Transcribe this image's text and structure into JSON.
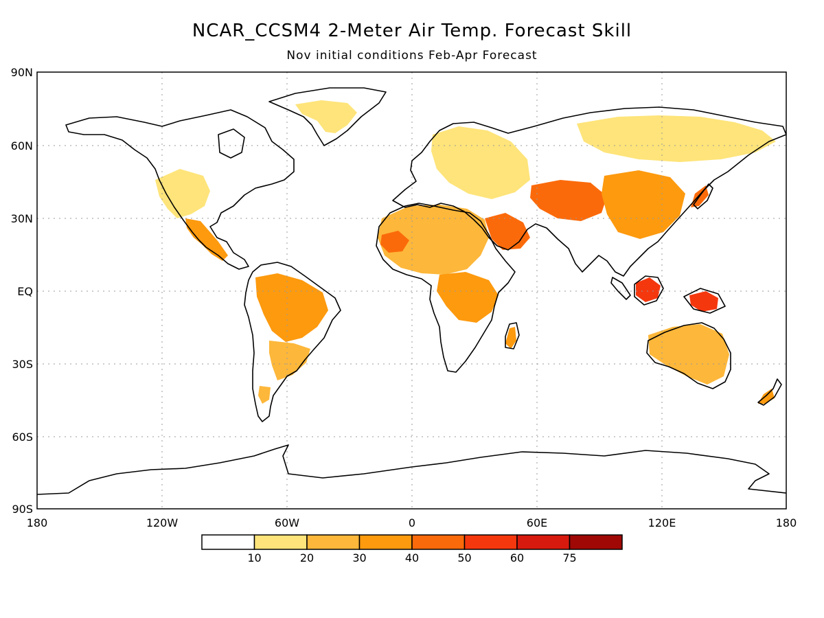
{
  "title": "NCAR_CCSM4 2-Meter Air Temp. Forecast Skill",
  "subtitle": "Nov initial conditions  Feb-Apr Forecast",
  "axes": {
    "lat_labels": [
      "90N",
      "60N",
      "30N",
      "EQ",
      "30S",
      "60S",
      "90S"
    ],
    "lon_labels": [
      "180",
      "120W",
      "60W",
      "0",
      "60E",
      "120E",
      "180"
    ]
  },
  "colorbar": {
    "labels": [
      "10",
      "20",
      "30",
      "40",
      "50",
      "60",
      "75"
    ],
    "colors": [
      "#ffffff",
      "#fee47a",
      "#fdb73a",
      "#fd9a0e",
      "#fb6a0a",
      "#f5370e",
      "#d81a0e",
      "#a00805"
    ]
  },
  "regions": [
    {
      "name": "skill-western-us",
      "level": 1
    },
    {
      "name": "skill-mexico",
      "level": 3
    },
    {
      "name": "skill-amazon",
      "level": 3
    },
    {
      "name": "skill-se-south-america",
      "level": 2
    },
    {
      "name": "skill-patagonia",
      "level": 2
    },
    {
      "name": "skill-greenland",
      "level": 1
    },
    {
      "name": "skill-europe-russia",
      "level": 1
    },
    {
      "name": "skill-siberia",
      "level": 1
    },
    {
      "name": "skill-sahara",
      "level": 2
    },
    {
      "name": "skill-west-africa",
      "level": 4
    },
    {
      "name": "skill-arabia",
      "level": 4
    },
    {
      "name": "skill-central-asia",
      "level": 4
    },
    {
      "name": "skill-china",
      "level": 3
    },
    {
      "name": "skill-east-africa",
      "level": 3
    },
    {
      "name": "skill-madagascar",
      "level": 3
    },
    {
      "name": "skill-borneo",
      "level": 5
    },
    {
      "name": "skill-new-guinea",
      "level": 5
    },
    {
      "name": "skill-australia",
      "level": 2
    },
    {
      "name": "skill-new-zealand",
      "level": 3
    },
    {
      "name": "skill-japan",
      "level": 4
    }
  ]
}
